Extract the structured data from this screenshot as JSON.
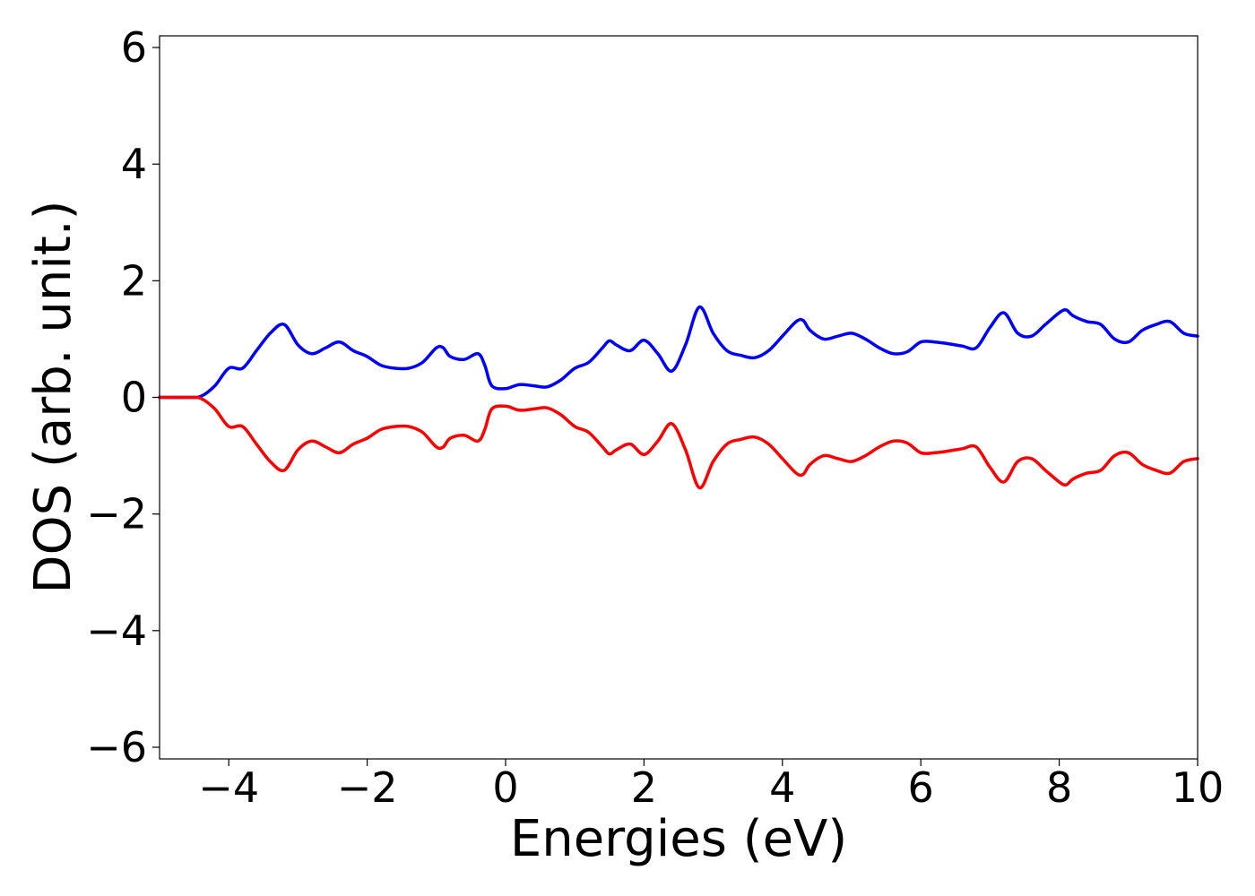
{
  "chart_data": {
    "type": "line",
    "xlabel": "Energies (eV)",
    "ylabel": "DOS (arb. unit.)",
    "xlim": [
      -5,
      10
    ],
    "ylim": [
      -6.2,
      6.2
    ],
    "xticks": [
      -4,
      -2,
      0,
      2,
      4,
      6,
      8,
      10
    ],
    "xtick_labels": [
      "−4",
      "−2",
      "0",
      "2",
      "4",
      "6",
      "8",
      "10"
    ],
    "yticks": [
      -6,
      -4,
      -2,
      0,
      2,
      4,
      6
    ],
    "ytick_labels": [
      "−6",
      "−4",
      "−2",
      "0",
      "2",
      "4",
      "6"
    ],
    "grid": false,
    "legend": "none",
    "x": [
      -5.0,
      -4.6,
      -4.4,
      -4.2,
      -4.0,
      -3.8,
      -3.6,
      -3.4,
      -3.2,
      -3.0,
      -2.8,
      -2.6,
      -2.4,
      -2.2,
      -2.0,
      -1.8,
      -1.6,
      -1.4,
      -1.2,
      -1.0,
      -0.9,
      -0.8,
      -0.6,
      -0.4,
      -0.3,
      -0.2,
      0.0,
      0.2,
      0.4,
      0.6,
      0.8,
      1.0,
      1.2,
      1.4,
      1.5,
      1.6,
      1.8,
      2.0,
      2.2,
      2.4,
      2.6,
      2.8,
      3.0,
      3.2,
      3.4,
      3.6,
      3.8,
      4.0,
      4.2,
      4.3,
      4.4,
      4.6,
      4.8,
      5.0,
      5.2,
      5.4,
      5.6,
      5.8,
      6.0,
      6.2,
      6.4,
      6.6,
      6.8,
      7.0,
      7.2,
      7.4,
      7.6,
      7.8,
      8.0,
      8.1,
      8.2,
      8.4,
      8.6,
      8.8,
      9.0,
      9.2,
      9.4,
      9.6,
      9.8,
      10.0
    ],
    "series": [
      {
        "color": "#0000ff",
        "values": [
          0.0,
          0.0,
          0.02,
          0.2,
          0.5,
          0.5,
          0.8,
          1.1,
          1.25,
          0.9,
          0.75,
          0.85,
          0.95,
          0.8,
          0.7,
          0.55,
          0.5,
          0.5,
          0.6,
          0.85,
          0.85,
          0.7,
          0.65,
          0.75,
          0.55,
          0.2,
          0.15,
          0.22,
          0.2,
          0.18,
          0.3,
          0.5,
          0.6,
          0.85,
          0.97,
          0.9,
          0.8,
          0.98,
          0.75,
          0.45,
          0.9,
          1.55,
          1.1,
          0.8,
          0.72,
          0.68,
          0.8,
          1.05,
          1.3,
          1.32,
          1.15,
          1.0,
          1.05,
          1.1,
          1.0,
          0.85,
          0.75,
          0.78,
          0.95,
          0.95,
          0.92,
          0.88,
          0.85,
          1.2,
          1.45,
          1.1,
          1.05,
          1.25,
          1.45,
          1.5,
          1.4,
          1.3,
          1.25,
          1.0,
          0.95,
          1.15,
          1.25,
          1.3,
          1.1,
          1.05
        ]
      },
      {
        "color": "#ff0000",
        "values": [
          0.0,
          0.0,
          -0.02,
          -0.2,
          -0.5,
          -0.5,
          -0.8,
          -1.1,
          -1.25,
          -0.9,
          -0.75,
          -0.85,
          -0.95,
          -0.8,
          -0.7,
          -0.55,
          -0.5,
          -0.5,
          -0.6,
          -0.85,
          -0.85,
          -0.7,
          -0.65,
          -0.75,
          -0.55,
          -0.2,
          -0.15,
          -0.22,
          -0.2,
          -0.18,
          -0.3,
          -0.5,
          -0.6,
          -0.85,
          -0.97,
          -0.9,
          -0.8,
          -0.98,
          -0.75,
          -0.45,
          -0.9,
          -1.55,
          -1.1,
          -0.8,
          -0.72,
          -0.68,
          -0.8,
          -1.05,
          -1.3,
          -1.32,
          -1.15,
          -1.0,
          -1.05,
          -1.1,
          -1.0,
          -0.85,
          -0.75,
          -0.78,
          -0.95,
          -0.95,
          -0.92,
          -0.88,
          -0.85,
          -1.2,
          -1.45,
          -1.1,
          -1.05,
          -1.25,
          -1.45,
          -1.5,
          -1.4,
          -1.3,
          -1.25,
          -1.0,
          -0.95,
          -1.15,
          -1.25,
          -1.3,
          -1.1,
          -1.05
        ]
      }
    ]
  }
}
